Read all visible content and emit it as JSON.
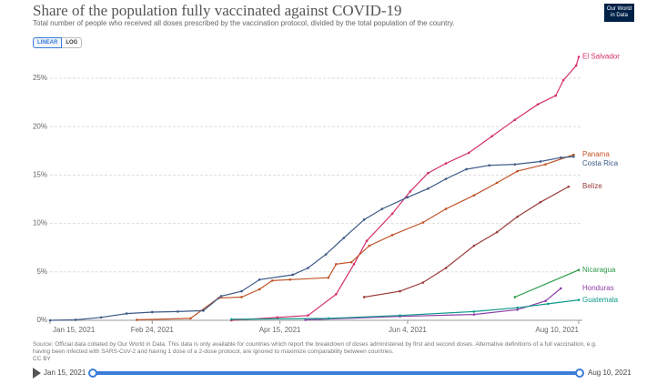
{
  "header": {
    "title": "Share of the population fully vaccinated against COVID-19",
    "subtitle": "Total number of people who received all doses prescribed by the vaccination protocol, divided by the total population of the country.",
    "logo": "Our World in Data"
  },
  "controls": {
    "linear": "LINEAR",
    "log": "LOG"
  },
  "chart_data": {
    "type": "line",
    "xlim": [
      "2021-01-15",
      "2021-08-10"
    ],
    "xticks": [
      {
        "value": "2021-01-15",
        "label": "Jan 15, 2021"
      },
      {
        "value": "2021-02-24",
        "label": "Feb 24, 2021"
      },
      {
        "value": "2021-04-15",
        "label": "Apr 15, 2021"
      },
      {
        "value": "2021-06-04",
        "label": "Jun 4, 2021"
      },
      {
        "value": "2021-08-10",
        "label": "Aug 10, 2021"
      }
    ],
    "ylim": [
      0,
      28
    ],
    "yticks": [
      {
        "value": 0,
        "label": "0%"
      },
      {
        "value": 5,
        "label": "5%"
      },
      {
        "value": 10,
        "label": "10%"
      },
      {
        "value": 15,
        "label": "15%"
      },
      {
        "value": 20,
        "label": "20%"
      },
      {
        "value": 25,
        "label": "25%"
      }
    ],
    "grid": true,
    "series": [
      {
        "name": "El Salvador",
        "color": "#d42f6e",
        "x": [
          "2021-03-27",
          "2021-04-14",
          "2021-04-26",
          "2021-05-07",
          "2021-05-14",
          "2021-05-19",
          "2021-05-29",
          "2021-06-05",
          "2021-06-12",
          "2021-06-19",
          "2021-06-28",
          "2021-07-07",
          "2021-07-16",
          "2021-07-25",
          "2021-08-01",
          "2021-08-04",
          "2021-08-09",
          "2021-08-10"
        ],
        "values": [
          0,
          0.3,
          0.5,
          2.7,
          5.8,
          8.2,
          11.0,
          13.3,
          15.2,
          16.2,
          17.3,
          19.0,
          20.7,
          22.3,
          23.2,
          24.8,
          26.3,
          27.2
        ]
      },
      {
        "name": "Panama",
        "color": "#c05428",
        "x": [
          "2021-02-18",
          "2021-03-11",
          "2021-03-22",
          "2021-03-31",
          "2021-04-07",
          "2021-04-12",
          "2021-04-19",
          "2021-05-04",
          "2021-05-07",
          "2021-05-13",
          "2021-05-20",
          "2021-05-29",
          "2021-06-10",
          "2021-06-19",
          "2021-06-30",
          "2021-07-09",
          "2021-07-17",
          "2021-07-28",
          "2021-08-08"
        ],
        "values": [
          0.05,
          0.2,
          2.3,
          2.4,
          3.2,
          4.1,
          4.2,
          4.4,
          5.8,
          6.0,
          7.7,
          8.8,
          10.1,
          11.5,
          12.9,
          14.2,
          15.4,
          16.1,
          17.1
        ]
      },
      {
        "name": "Costa Rica",
        "color": "#3d5a87",
        "x": [
          "2021-01-15",
          "2021-01-25",
          "2021-02-04",
          "2021-02-14",
          "2021-02-24",
          "2021-03-06",
          "2021-03-16",
          "2021-03-23",
          "2021-03-31",
          "2021-04-07",
          "2021-04-20",
          "2021-04-26",
          "2021-05-03",
          "2021-05-10",
          "2021-05-18",
          "2021-05-25",
          "2021-06-04",
          "2021-06-12",
          "2021-06-19",
          "2021-06-27",
          "2021-07-06",
          "2021-07-16",
          "2021-07-26",
          "2021-08-03",
          "2021-08-08"
        ],
        "values": [
          0,
          0.05,
          0.3,
          0.7,
          0.85,
          0.9,
          1.0,
          2.5,
          3.0,
          4.2,
          4.7,
          5.4,
          6.8,
          8.5,
          10.4,
          11.5,
          12.7,
          13.6,
          14.6,
          15.6,
          16.0,
          16.1,
          16.4,
          16.8,
          16.9
        ]
      },
      {
        "name": "Belize",
        "color": "#9b3b3b",
        "x": [
          "2021-05-18",
          "2021-06-01",
          "2021-06-10",
          "2021-06-19",
          "2021-06-30",
          "2021-07-09",
          "2021-07-17",
          "2021-07-26",
          "2021-08-06"
        ],
        "values": [
          2.4,
          3.0,
          3.9,
          5.4,
          7.7,
          9.1,
          10.7,
          12.2,
          13.8
        ]
      },
      {
        "name": "Nicaragua",
        "color": "#2a9b48",
        "x": [
          "2021-07-16",
          "2021-08-10"
        ],
        "values": [
          2.4,
          5.2
        ]
      },
      {
        "name": "Honduras",
        "color": "#8d3fa8",
        "x": [
          "2021-04-25",
          "2021-06-01",
          "2021-06-30",
          "2021-07-17",
          "2021-07-28",
          "2021-08-03"
        ],
        "values": [
          0.05,
          0.4,
          0.6,
          1.1,
          2.0,
          3.3
        ]
      },
      {
        "name": "Guatemala",
        "color": "#109a8c",
        "x": [
          "2021-03-27",
          "2021-05-04",
          "2021-06-01",
          "2021-06-30",
          "2021-07-17",
          "2021-07-29",
          "2021-08-10"
        ],
        "values": [
          0.1,
          0.2,
          0.5,
          0.9,
          1.3,
          1.7,
          2.1
        ]
      }
    ]
  },
  "footer": {
    "source": "Source: Official data collated by Our World in Data. This data is only available for countries which report the breakdown of doses administered by first and second doses. Alternative definitions of a full vaccination, e.g. having been infected with SARS-CoV-2 and having 1 dose of a 2-dose protocol, are ignored to maximize comparability between countries.",
    "license": "CC BY"
  },
  "timeline": {
    "start": "Jan 15, 2021",
    "end": "Aug 10, 2021"
  }
}
